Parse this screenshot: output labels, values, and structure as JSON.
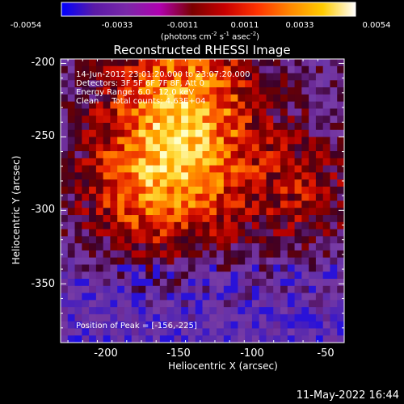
{
  "colorbar": {
    "ticks": [
      "-0.0054",
      "-0.0033",
      "-0.0011",
      "0.0011",
      "0.0033",
      "0.0054"
    ],
    "unit_label_parts": [
      "(photons cm",
      "-2",
      " s",
      "-1",
      " asec",
      "-2",
      ")"
    ],
    "range": [
      -0.0054,
      0.0054
    ],
    "colors": [
      "#0000ff",
      "#5a1aa6",
      "#7a28a8",
      "#b000b0",
      "#7a0000",
      "#c80000",
      "#ff3300",
      "#ff8800",
      "#ffcc00",
      "#ffffff"
    ]
  },
  "chart_data": {
    "type": "heatmap",
    "title": "Reconstructed RHESSI Image",
    "xlabel": "Heliocentric X (arcsec)",
    "ylabel": "Heliocentric Y (arcsec)",
    "xlim": [
      -230,
      -37
    ],
    "ylim": [
      -390,
      -197
    ],
    "xticks": [
      -200,
      -150,
      -100,
      -50
    ],
    "yticks": [
      -200,
      -250,
      -300,
      -350
    ],
    "annotations": [
      "14-Jun-2012 23:01:20.000 to 23:07:20.000",
      "Detectors: 3F 5F 6F 7F 8F, Att 0",
      "Energy Range: 6.0 - 12.0 keV",
      "Clean     Total counts: 4.63E+04"
    ],
    "peak_label": "Position of Peak = [-156,-225]",
    "peak": [
      -156,
      -225
    ]
  },
  "timestamp": "11-May-2022 16:44"
}
